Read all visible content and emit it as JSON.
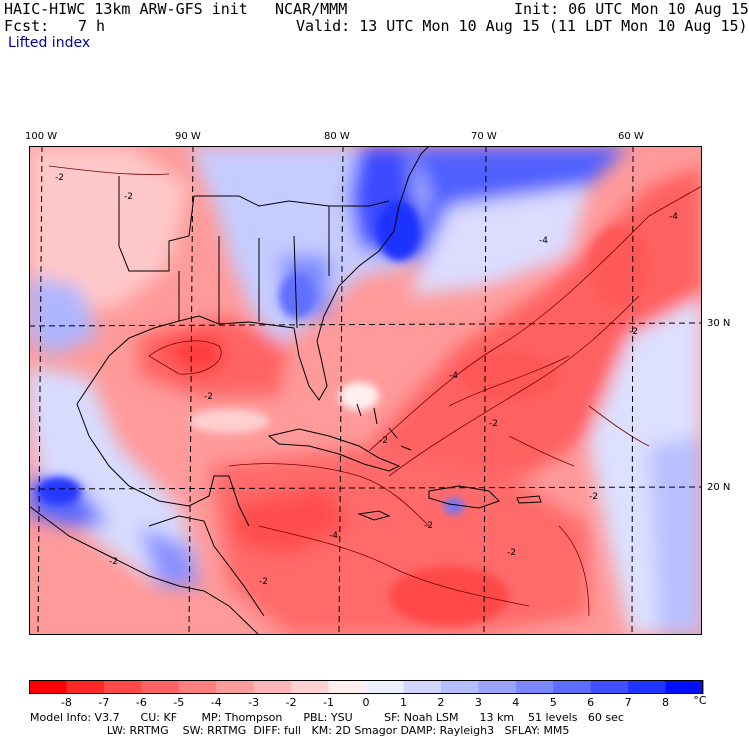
{
  "header": {
    "title_left": "HAIC-HIWC 13km ARW-GFS init",
    "org": "NCAR/MMM",
    "init": "Init: 06 UTC Mon 10 Aug 15",
    "fcst_label": "Fcst:",
    "fcst_value": "7 h",
    "valid": "Valid: 13 UTC Mon 10 Aug 15 (11 LDT Mon 10 Aug 15)",
    "field": "Lifted index"
  },
  "map": {
    "lon_labels": [
      "100 W",
      "90 W",
      "80 W",
      "70 W",
      "60 W"
    ],
    "lat_labels": [
      "30 N",
      "20 N"
    ],
    "contour_labels": [
      "-2",
      "-2",
      "-2",
      "-2",
      "-4",
      "-4",
      "-4",
      "-4",
      "-2",
      "-2",
      "-2",
      "-2",
      "-2",
      "-2",
      "-2"
    ]
  },
  "colorbar": {
    "ticks": [
      "-8",
      "-7",
      "-6",
      "-5",
      "-4",
      "-3",
      "-2",
      "-1",
      "0",
      "1",
      "2",
      "3",
      "4",
      "5",
      "6",
      "7",
      "8"
    ],
    "unit": "°C",
    "colors": [
      "#ff0000",
      "#ff2828",
      "#ff4848",
      "#ff6464",
      "#ff7e7e",
      "#ff9a9a",
      "#ffb6b6",
      "#ffd2d2",
      "#ffeeee",
      "#eef0ff",
      "#d2d6ff",
      "#b6beff",
      "#9aa4ff",
      "#7c88ff",
      "#5e6cff",
      "#4050ff",
      "#2034ff",
      "#0010ff"
    ]
  },
  "model_info": {
    "line1": "Model Info: V3.7      CU: KF       MP: Thompson      PBL: YSU         SF: Noah LSM      13 km    51 levels   60 sec",
    "line2": "                      LW: RRTMG    SW: RRTMG  DIFF: full   KM: 2D Smagor DAMP: Rayleigh3   SFLAY: MM5"
  }
}
